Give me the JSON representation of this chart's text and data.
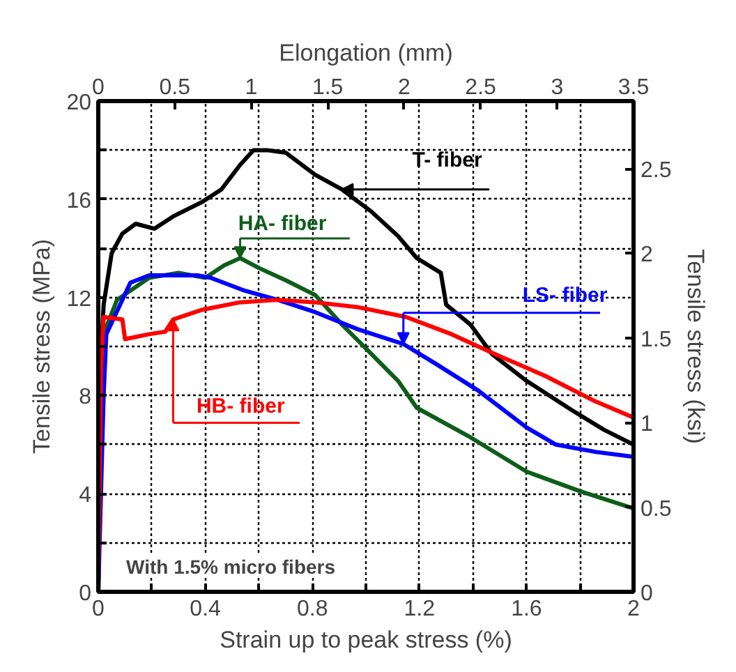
{
  "chart_data": {
    "type": "line",
    "xlabel": "Strain up to peak stress (%)",
    "ylabel": "Tensile stress (MPa)",
    "y2label": "Tensile stress (ksi)",
    "x2label": "Elongation (mm)",
    "xlim": [
      0,
      2
    ],
    "ylim": [
      0,
      20
    ],
    "y2lim": [
      0,
      2.9
    ],
    "x2lim": [
      0,
      3.5
    ],
    "xticks": [
      0,
      {
        "value": 0.2,
        "label": null
      },
      0.4,
      {
        "value": 0.6,
        "label": null
      },
      0.8,
      {
        "value": 1.0,
        "label": null
      },
      1.2,
      {
        "value": 1.4,
        "label": null
      },
      1.6,
      {
        "value": 1.8,
        "label": null
      },
      2
    ],
    "yticks": [
      0,
      {
        "value": 2,
        "label": null
      },
      4,
      {
        "value": 6,
        "label": null
      },
      8,
      {
        "value": 10,
        "label": null
      },
      12,
      {
        "value": 14,
        "label": null
      },
      16,
      {
        "value": 18,
        "label": null
      },
      20
    ],
    "y2ticks": [
      0,
      0.5,
      1,
      1.5,
      2,
      2.5
    ],
    "x2ticks": [
      0,
      0.5,
      1,
      1.5,
      2,
      2.5,
      3,
      3.5
    ],
    "grid": true,
    "legend": false,
    "marker": "none",
    "line_style": "solid",
    "series": [
      {
        "name": "T- fiber",
        "color": "#000000",
        "x": [
          0,
          0.01,
          0.02,
          0.05,
          0.09,
          0.14,
          0.21,
          0.28,
          0.39,
          0.46,
          0.53,
          0.58,
          0.63,
          0.7,
          0.81,
          0.91,
          1.02,
          1.12,
          1.19,
          1.28,
          1.3,
          1.39,
          1.47,
          1.6,
          1.77,
          1.89,
          2.0
        ],
        "values": [
          0,
          9.5,
          11.7,
          13.8,
          14.6,
          15.0,
          14.8,
          15.3,
          15.9,
          16.4,
          17.4,
          18.0,
          18.0,
          17.9,
          17.0,
          16.4,
          15.5,
          14.5,
          13.6,
          13.0,
          11.7,
          10.9,
          9.7,
          8.6,
          7.4,
          6.6,
          6.0
        ]
      },
      {
        "name": "HA- fiber",
        "color": "#0e5e1a",
        "x": [
          0,
          0.01,
          0.02,
          0.07,
          0.19,
          0.3,
          0.4,
          0.47,
          0.53,
          0.6,
          0.7,
          0.81,
          0.91,
          1.02,
          1.12,
          1.19,
          1.39,
          1.6,
          1.8,
          2.0
        ],
        "values": [
          0,
          8.5,
          10.5,
          11.9,
          12.8,
          13.0,
          12.8,
          13.3,
          13.6,
          13.2,
          12.7,
          12.1,
          10.9,
          9.7,
          8.6,
          7.5,
          6.3,
          4.9,
          4.1,
          3.4
        ]
      },
      {
        "name": "LS- fiber",
        "color": "#0000ff",
        "x": [
          0,
          0.02,
          0.03,
          0.12,
          0.19,
          0.37,
          0.42,
          0.54,
          0.67,
          0.81,
          0.97,
          1.14,
          1.26,
          1.42,
          1.6,
          1.71,
          1.86,
          2.0
        ],
        "values": [
          0,
          8.0,
          10.5,
          12.6,
          12.9,
          12.9,
          12.8,
          12.3,
          11.9,
          11.4,
          10.7,
          10.1,
          9.3,
          8.2,
          6.7,
          6.0,
          5.7,
          5.5
        ]
      },
      {
        "name": "HB- fiber",
        "color": "#ff0000",
        "x": [
          0,
          0.01,
          0.02,
          0.09,
          0.1,
          0.19,
          0.25,
          0.28,
          0.39,
          0.53,
          0.67,
          0.81,
          0.97,
          1.15,
          1.32,
          1.5,
          1.67,
          1.85,
          2.0
        ],
        "values": [
          0,
          9.0,
          11.2,
          11.1,
          10.3,
          10.5,
          10.6,
          11.1,
          11.5,
          11.8,
          11.9,
          11.8,
          11.6,
          11.2,
          10.5,
          9.6,
          8.8,
          7.8,
          7.1
        ]
      }
    ],
    "annotations": [
      "With 1.5% micro fibers"
    ]
  }
}
